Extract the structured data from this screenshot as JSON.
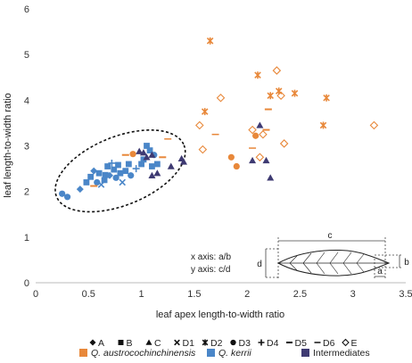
{
  "chart_data": {
    "type": "scatter",
    "xlabel": "leaf apex length-to-width ratio",
    "ylabel": "leaf length-to-width ratio",
    "xlim": [
      0,
      3.5
    ],
    "ylim": [
      0,
      6
    ],
    "xticks": [
      "0",
      "0.5",
      "1",
      "1.5",
      "2",
      "2.5",
      "3",
      "3.5"
    ],
    "yticks": [
      "0",
      "1",
      "2",
      "3",
      "4",
      "5",
      "6"
    ],
    "grid": false,
    "colors": {
      "austrocochinchinensis": "#e8883a",
      "kerrii": "#4a86c8",
      "intermediates": "#3e3a72"
    },
    "series": [
      {
        "group": "kerrii",
        "points": [
          [
            0.25,
            1.95,
            "D3"
          ],
          [
            0.3,
            1.88,
            "D3"
          ],
          [
            0.42,
            2.05,
            "A"
          ],
          [
            0.48,
            2.2,
            "B"
          ],
          [
            0.52,
            2.32,
            "B"
          ],
          [
            0.55,
            2.45,
            "A"
          ],
          [
            0.6,
            2.4,
            "B"
          ],
          [
            0.62,
            2.15,
            "D1"
          ],
          [
            0.65,
            2.25,
            "B"
          ],
          [
            0.68,
            2.55,
            "B"
          ],
          [
            0.7,
            2.35,
            "A"
          ],
          [
            0.72,
            2.62,
            "D4"
          ],
          [
            0.74,
            2.48,
            "B"
          ],
          [
            0.76,
            2.3,
            "D3"
          ],
          [
            0.78,
            2.58,
            "B"
          ],
          [
            0.8,
            2.4,
            "B"
          ],
          [
            0.82,
            2.2,
            "D1"
          ],
          [
            0.85,
            2.45,
            "B"
          ],
          [
            0.88,
            2.6,
            "B"
          ],
          [
            0.9,
            2.35,
            "D3"
          ],
          [
            0.95,
            2.5,
            "D4"
          ],
          [
            1.0,
            2.6,
            "B"
          ],
          [
            1.02,
            2.7,
            "B"
          ],
          [
            1.05,
            3.0,
            "B"
          ],
          [
            1.08,
            2.9,
            "B"
          ],
          [
            1.1,
            2.55,
            "B"
          ],
          [
            1.12,
            2.8,
            "D3"
          ],
          [
            1.15,
            2.6,
            "B"
          ],
          [
            0.58,
            2.2,
            "D3"
          ],
          [
            0.66,
            2.36,
            "B"
          ]
        ]
      },
      {
        "group": "austrocochinchinensis",
        "points": [
          [
            0.55,
            2.12,
            "D5"
          ],
          [
            0.85,
            2.8,
            "D5"
          ],
          [
            0.92,
            2.82,
            "D3"
          ],
          [
            1.2,
            2.75,
            "D5"
          ],
          [
            1.25,
            3.15,
            "D6"
          ],
          [
            1.6,
            3.75,
            "D2"
          ],
          [
            1.65,
            5.3,
            "D2"
          ],
          [
            1.7,
            3.25,
            "D6"
          ],
          [
            1.55,
            3.45,
            "E"
          ],
          [
            1.75,
            4.05,
            "E"
          ],
          [
            1.85,
            2.75,
            "D3"
          ],
          [
            1.9,
            2.55,
            "D3"
          ],
          [
            2.05,
            3.35,
            "E"
          ],
          [
            2.08,
            3.22,
            "D3"
          ],
          [
            2.1,
            4.55,
            "D2"
          ],
          [
            2.15,
            3.25,
            "E"
          ],
          [
            2.2,
            3.8,
            "D5"
          ],
          [
            2.22,
            4.1,
            "D2"
          ],
          [
            2.28,
            4.65,
            "E"
          ],
          [
            2.3,
            4.2,
            "D2"
          ],
          [
            2.32,
            4.1,
            "E"
          ],
          [
            2.35,
            3.05,
            "E"
          ],
          [
            2.45,
            4.15,
            "D2"
          ],
          [
            2.72,
            3.45,
            "D2"
          ],
          [
            2.75,
            4.05,
            "D2"
          ],
          [
            3.2,
            3.45,
            "E"
          ],
          [
            2.12,
            2.75,
            "E"
          ],
          [
            2.18,
            3.35,
            "D5"
          ],
          [
            2.05,
            2.95,
            "D6"
          ],
          [
            1.58,
            2.92,
            "E"
          ]
        ]
      },
      {
        "group": "intermediates",
        "points": [
          [
            0.98,
            2.88,
            "C"
          ],
          [
            1.02,
            2.85,
            "C"
          ],
          [
            1.05,
            2.75,
            "C"
          ],
          [
            1.1,
            2.8,
            "C"
          ],
          [
            1.15,
            2.4,
            "C"
          ],
          [
            1.28,
            2.55,
            "C"
          ],
          [
            1.38,
            2.72,
            "C"
          ],
          [
            1.4,
            2.65,
            "C"
          ],
          [
            2.05,
            2.68,
            "C"
          ],
          [
            2.12,
            3.45,
            "C"
          ],
          [
            2.18,
            2.68,
            "C"
          ],
          [
            2.22,
            2.3,
            "C"
          ],
          [
            1.1,
            2.35,
            "C"
          ]
        ]
      }
    ],
    "ellipse": {
      "cx": 0.8,
      "cy": 2.45,
      "rx": 0.65,
      "ry": 0.75,
      "angle_deg": -22
    },
    "legend": {
      "markers": [
        {
          "symbol": "A",
          "label": "A"
        },
        {
          "symbol": "B",
          "label": "B"
        },
        {
          "symbol": "C",
          "label": "C"
        },
        {
          "symbol": "D1",
          "label": "D1"
        },
        {
          "symbol": "D2",
          "label": "D2"
        },
        {
          "symbol": "D3",
          "label": "D3"
        },
        {
          "symbol": "D4",
          "label": "D4"
        },
        {
          "symbol": "D5",
          "label": "D5"
        },
        {
          "symbol": "D6",
          "label": "D6"
        },
        {
          "symbol": "E",
          "label": "E"
        }
      ],
      "groups": [
        {
          "color_key": "austrocochinchinensis",
          "label": "Q. austrocochinchinensis"
        },
        {
          "color_key": "kerrii",
          "label": "Q. kerrii"
        },
        {
          "color_key": "intermediates",
          "label": "Intermediates"
        }
      ]
    },
    "inset": {
      "line1": "x axis: a/b",
      "line2": "y axis: c/d",
      "labels": {
        "a": "a",
        "b": "b",
        "c": "c",
        "d": "d"
      }
    }
  }
}
